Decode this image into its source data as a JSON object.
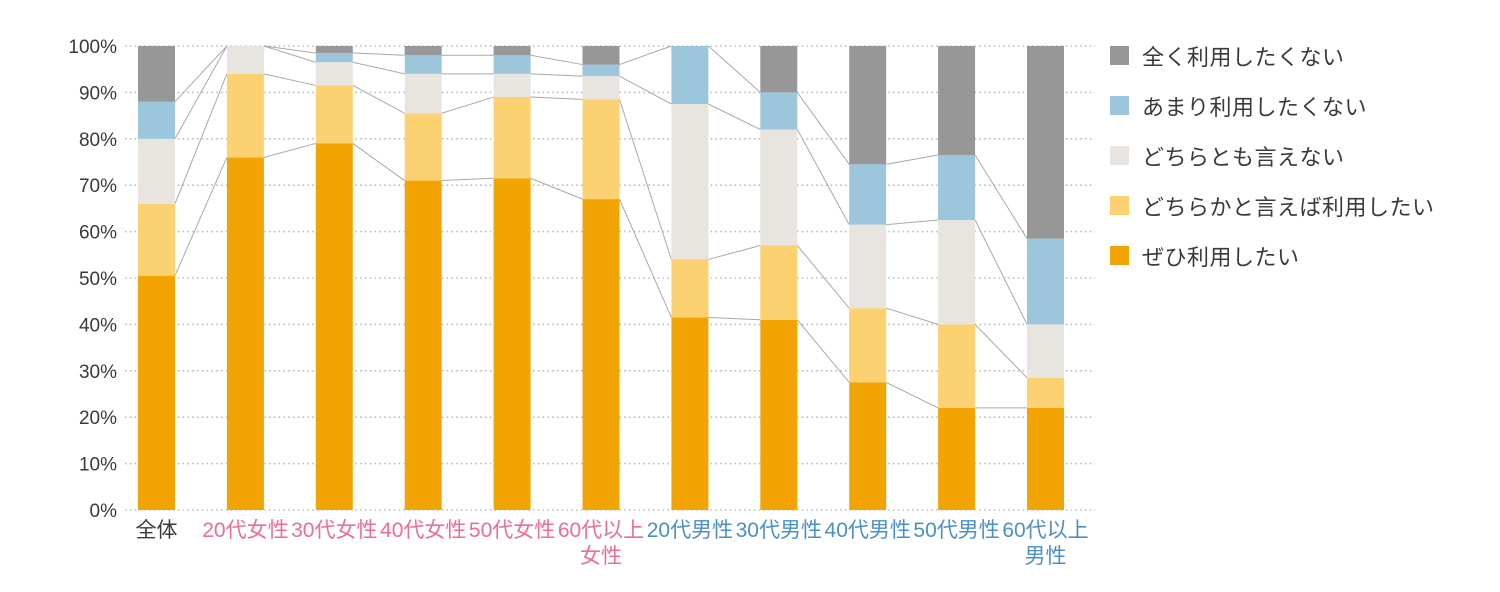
{
  "chart_data": {
    "type": "bar",
    "variant": "stacked_percent_column",
    "categories": [
      "全体",
      "20代女性",
      "30代女性",
      "40代女性",
      "50代女性",
      "60代以上女性",
      "20代男性",
      "30代男性",
      "40代男性",
      "50代男性",
      "60代以上男性"
    ],
    "category_label_lines": [
      [
        "全体"
      ],
      [
        "20代女性"
      ],
      [
        "30代女性"
      ],
      [
        "40代女性"
      ],
      [
        "50代女性"
      ],
      [
        "60代以上",
        "女性"
      ],
      [
        "20代男性"
      ],
      [
        "30代男性"
      ],
      [
        "40代男性"
      ],
      [
        "50代男性"
      ],
      [
        "60代以上",
        "男性"
      ]
    ],
    "category_label_colors": [
      "#3a3a3a",
      "#ee6d96",
      "#ee6d96",
      "#ee6d96",
      "#ee6d96",
      "#ee6d96",
      "#4c8fc4",
      "#4c8fc4",
      "#4c8fc4",
      "#4c8fc4",
      "#4c8fc4"
    ],
    "series": [
      {
        "name": "ぜひ利用したい",
        "color": "#F2A405",
        "values": [
          50.5,
          76,
          79,
          71,
          71.5,
          67,
          41.5,
          41,
          27.5,
          22,
          22
        ]
      },
      {
        "name": "どちらかと言えば利用したい",
        "color": "#FBD172",
        "values": [
          15.5,
          18,
          12.5,
          14.5,
          17.5,
          21.5,
          12.5,
          16,
          16,
          18,
          6.5
        ]
      },
      {
        "name": "どちらとも言えない",
        "color": "#E8E5E0",
        "values": [
          14,
          6,
          5,
          8.5,
          5,
          5,
          33.5,
          25,
          18,
          22.5,
          11.5
        ]
      },
      {
        "name": "あまり利用したくない",
        "color": "#9CC6DC",
        "values": [
          8,
          0,
          2,
          4,
          4,
          2.5,
          12.5,
          8,
          13,
          14,
          18.5
        ]
      },
      {
        "name": "全く利用したくない",
        "color": "#979797",
        "values": [
          12,
          0,
          1.5,
          2,
          2,
          4,
          0,
          10,
          25.5,
          23.5,
          41.5
        ]
      }
    ],
    "y_axis": {
      "tick_labels": [
        "0%",
        "10%",
        "20%",
        "30%",
        "40%",
        "50%",
        "60%",
        "70%",
        "80%",
        "90%",
        "100%"
      ],
      "min": 0,
      "max": 100,
      "grid_style": "dotted",
      "grid_color": "#BDBDBD",
      "tick_label_color": "#3a3a3a"
    },
    "legend_position": "right",
    "legend": [
      {
        "label": "全く利用したくない",
        "color": "#979797"
      },
      {
        "label": "あまり利用したくない",
        "color": "#9CC6DC"
      },
      {
        "label": "どちらとも言えない",
        "color": "#E8E5E0"
      },
      {
        "label": "どちらかと言えば利用したい",
        "color": "#FBD172"
      },
      {
        "label": "ぜひ利用したい",
        "color": "#F2A405"
      }
    ],
    "connector_lines": {
      "enabled": true,
      "color": "#A9A9A9"
    }
  }
}
